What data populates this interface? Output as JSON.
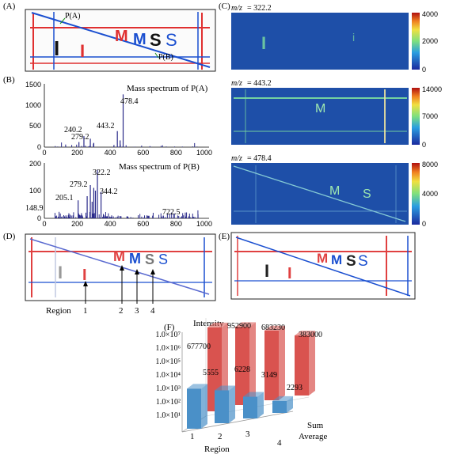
{
  "panels": {
    "A": {
      "label": "(A)",
      "point_a": "P(A)",
      "point_b": "P(B)",
      "letters": [
        "I",
        "I",
        "M",
        "M",
        "S",
        "S"
      ]
    },
    "B": {
      "label": "(B)",
      "top_title": "Mass spectrum of  P(A)",
      "bottom_title": "Mass spectrum of  P(B)",
      "top_yticks": [
        "0",
        "500",
        "1000",
        "1500"
      ],
      "bottom_yticks": [
        "0",
        "100",
        "200"
      ],
      "xticks": [
        "0",
        "200",
        "400",
        "600",
        "800",
        "1000"
      ],
      "top_peak_labels": [
        "478.4",
        "443.2",
        "240.2",
        "279.2"
      ],
      "bottom_peak_labels": [
        "322.2",
        "279.2",
        "344.2",
        "205.1",
        "148.9",
        "722.5"
      ]
    },
    "C": {
      "label": "(C)",
      "maps": [
        {
          "mz_prefix": "m/z",
          "mz_value": "= 322.2",
          "cbar_ticks": [
            "4000",
            "2000",
            "0"
          ]
        },
        {
          "mz_prefix": "m/z",
          "mz_value": "= 443.2",
          "cbar_ticks": [
            "14000",
            "7000",
            "0"
          ]
        },
        {
          "mz_prefix": "m/z",
          "mz_value": "= 478.4",
          "cbar_ticks": [
            "8000",
            "4000",
            "0"
          ]
        }
      ]
    },
    "D": {
      "label": "(D)",
      "region_word": "Region",
      "regions": [
        "1",
        "2",
        "3",
        "4"
      ]
    },
    "E": {
      "label": "(E)"
    },
    "F": {
      "label": "(F)",
      "ylabel": "Intensity",
      "yticks": [
        "1.0×10⁷",
        "1.0×10⁶",
        "1.0×10⁵",
        "1.0×10⁴",
        "1.0×10³",
        "1.0×10²",
        "1.0×10¹"
      ],
      "xlabel": "Region",
      "sum_label": "Sum",
      "avg_label": "Average"
    }
  },
  "colors": {
    "blue_bar": "#4a90c8",
    "red_bar": "#d9534f",
    "map_bg": "#1e4fa8",
    "spectrum": "#2a2a8a"
  },
  "chart_data": {
    "type": "bar",
    "categories": [
      "1",
      "2",
      "3",
      "4"
    ],
    "series": [
      {
        "name": "Sum",
        "values": [
          677700,
          952900,
          683230,
          383000
        ]
      },
      {
        "name": "Average",
        "values": [
          5555,
          6228,
          3149,
          2293
        ]
      }
    ],
    "xlabel": "Region",
    "ylabel": "Intensity",
    "scale": "log"
  }
}
